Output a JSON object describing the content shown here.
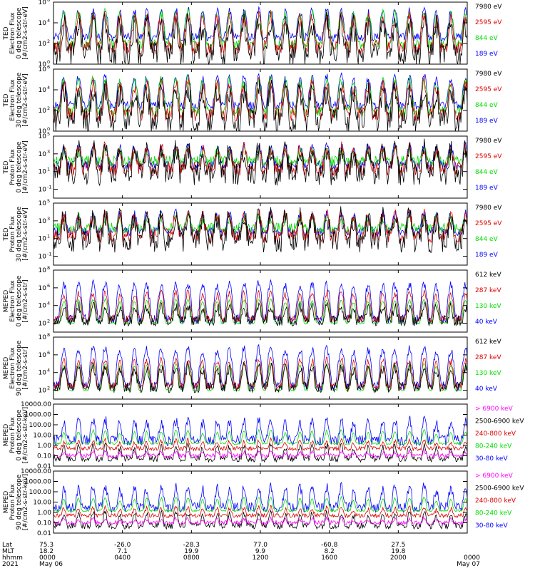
{
  "chart_data": [
    {
      "type": "line",
      "ylabel": [
        "TED",
        "Electron Flux",
        "0 deg telescope",
        "[#/cm2-s-str-eV]"
      ],
      "yscale": "log",
      "ylim": [
        1,
        1000000
      ],
      "yticks": [
        {
          "label": "10",
          "exp": "0",
          "value": 1
        },
        {
          "label": "10",
          "exp": "2",
          "value": 100
        },
        {
          "label": "10",
          "exp": "4",
          "value": 10000
        },
        {
          "label": "10",
          "exp": "6",
          "value": 1000000
        }
      ],
      "series": [
        {
          "name": "7980 eV",
          "color": "#000000",
          "base": 10,
          "peak": 10000,
          "noise": 1.2
        },
        {
          "name": "2595 eV",
          "color": "#dd0000",
          "base": 40,
          "peak": 40000,
          "noise": 0.7
        },
        {
          "name": "844 eV",
          "color": "#00dd00",
          "base": 80,
          "peak": 100000,
          "noise": 0.5
        },
        {
          "name": "189 eV",
          "color": "#0000ff",
          "base": 400,
          "peak": 200000,
          "noise": 0.4
        }
      ]
    },
    {
      "type": "line",
      "ylabel": [
        "TED",
        "Electron Flux",
        "30 deg telescope",
        "[#/cm2-s-str-eV]"
      ],
      "yscale": "log",
      "ylim": [
        1,
        1000000
      ],
      "yticks": [
        {
          "label": "10",
          "exp": "0",
          "value": 1
        },
        {
          "label": "10",
          "exp": "2",
          "value": 100
        },
        {
          "label": "10",
          "exp": "4",
          "value": 10000
        },
        {
          "label": "10",
          "exp": "6",
          "value": 1000000
        }
      ],
      "series": [
        {
          "name": "7980 eV",
          "color": "#000000",
          "base": 10,
          "peak": 10000,
          "noise": 1.2
        },
        {
          "name": "2595 eV",
          "color": "#dd0000",
          "base": 40,
          "peak": 40000,
          "noise": 0.7
        },
        {
          "name": "844 eV",
          "color": "#00dd00",
          "base": 80,
          "peak": 100000,
          "noise": 0.5
        },
        {
          "name": "189 eV",
          "color": "#0000ff",
          "base": 300,
          "peak": 200000,
          "noise": 0.4
        }
      ]
    },
    {
      "type": "line",
      "ylabel": [
        "TED",
        "Proton Flux",
        "0 deg telescope",
        "[#/cm2-s-str-eV]"
      ],
      "yscale": "log",
      "ylim": [
        0.01,
        100000
      ],
      "yticks": [
        {
          "label": "10",
          "exp": "-1",
          "value": 0.1
        },
        {
          "label": "10",
          "exp": "1",
          "value": 10
        },
        {
          "label": "10",
          "exp": "3",
          "value": 1000
        },
        {
          "label": "10",
          "exp": "5",
          "value": 100000
        }
      ],
      "series": [
        {
          "name": "7980 eV",
          "color": "#000000",
          "base": 5,
          "peak": 3000,
          "noise": 1.3
        },
        {
          "name": "2595 eV",
          "color": "#dd0000",
          "base": 20,
          "peak": 5000,
          "noise": 0.8
        },
        {
          "name": "844 eV",
          "color": "#00dd00",
          "base": 150,
          "peak": 3000,
          "noise": 0.6
        },
        {
          "name": "189 eV",
          "color": "#0000ff",
          "base": 60,
          "peak": 10000,
          "noise": 0.5
        }
      ]
    },
    {
      "type": "line",
      "ylabel": [
        "TED",
        "Proton Flux",
        "30 deg telescope",
        "[#/cm2-s-str-eV]"
      ],
      "yscale": "log",
      "ylim": [
        0.01,
        100000
      ],
      "yticks": [
        {
          "label": "10",
          "exp": "-1",
          "value": 0.1
        },
        {
          "label": "10",
          "exp": "1",
          "value": 10
        },
        {
          "label": "10",
          "exp": "3",
          "value": 1000
        },
        {
          "label": "10",
          "exp": "5",
          "value": 100000
        }
      ],
      "series": [
        {
          "name": "7980 eV",
          "color": "#000000",
          "base": 5,
          "peak": 3000,
          "noise": 1.3
        },
        {
          "name": "2595 eV",
          "color": "#dd0000",
          "base": 20,
          "peak": 5000,
          "noise": 0.8
        },
        {
          "name": "844 eV",
          "color": "#00dd00",
          "base": 150,
          "peak": 3000,
          "noise": 0.6
        },
        {
          "name": "189 eV",
          "color": "#0000ff",
          "base": 60,
          "peak": 10000,
          "noise": 0.5
        }
      ]
    },
    {
      "type": "line",
      "ylabel": [
        "MEPED",
        "Electron Flux",
        "0 deg telescope",
        "[#/cm2-s-str]"
      ],
      "yscale": "log",
      "ylim": [
        10,
        100000000
      ],
      "yticks": [
        {
          "label": "10",
          "exp": "2",
          "value": 100
        },
        {
          "label": "10",
          "exp": "4",
          "value": 10000
        },
        {
          "label": "10",
          "exp": "6",
          "value": 1000000
        },
        {
          "label": "10",
          "exp": "8",
          "value": 100000000
        }
      ],
      "series": [
        {
          "name": "612 keV",
          "color": "#000000",
          "base": 200,
          "peak": 10000,
          "noise": 0.6
        },
        {
          "name": "287 keV",
          "color": "#dd0000",
          "base": 300,
          "peak": 300000,
          "noise": 0.4
        },
        {
          "name": "130 keV",
          "color": "#00dd00",
          "base": 100,
          "peak": 50000,
          "noise": 0.1
        },
        {
          "name": "40 keV",
          "color": "#0000ff",
          "base": 300,
          "peak": 3000000,
          "noise": 0.5
        }
      ]
    },
    {
      "type": "line",
      "ylabel": [
        "MEPED",
        "Electron Flux",
        "90 deg telescope",
        "[#/cm2-s-str]"
      ],
      "yscale": "log",
      "ylim": [
        10,
        100000000
      ],
      "yticks": [
        {
          "label": "10",
          "exp": "2",
          "value": 100
        },
        {
          "label": "10",
          "exp": "4",
          "value": 10000
        },
        {
          "label": "10",
          "exp": "6",
          "value": 1000000
        },
        {
          "label": "10",
          "exp": "8",
          "value": 100000000
        }
      ],
      "series": [
        {
          "name": "612 keV",
          "color": "#000000",
          "base": 200,
          "peak": 50000,
          "noise": 0.6
        },
        {
          "name": "287 keV",
          "color": "#dd0000",
          "base": 300,
          "peak": 300000,
          "noise": 0.4
        },
        {
          "name": "130 keV",
          "color": "#00dd00",
          "base": 100,
          "peak": 100000,
          "noise": 0.1
        },
        {
          "name": "40 keV",
          "color": "#0000ff",
          "base": 300,
          "peak": 5000000,
          "noise": 0.5
        }
      ]
    },
    {
      "type": "line",
      "ylabel": [
        "MEPED",
        "Proton Flux",
        "0 deg telescope",
        "[#/cm2-s-str-keV]"
      ],
      "yscale": "log",
      "ylim": [
        0.01,
        10000
      ],
      "yticks": [
        {
          "label": "0.01",
          "exp": "",
          "value": 0.01
        },
        {
          "label": "0.10",
          "exp": "",
          "value": 0.1
        },
        {
          "label": "1.00",
          "exp": "",
          "value": 1
        },
        {
          "label": "10.00",
          "exp": "",
          "value": 10
        },
        {
          "label": "100.00",
          "exp": "",
          "value": 100
        },
        {
          "label": "1000.00",
          "exp": "",
          "value": 1000
        },
        {
          "label": "10000.00",
          "exp": "",
          "value": 10000
        }
      ],
      "series": [
        {
          "name": "> 6900 keV",
          "color": "#ff00ff",
          "base": 0.1,
          "peak": 0.2,
          "noise": 0.2
        },
        {
          "name": "2500-6900 keV",
          "color": "#000000",
          "base": 0.05,
          "peak": 1,
          "noise": 0.3
        },
        {
          "name": "240-800 keV",
          "color": "#dd0000",
          "base": 0.5,
          "peak": 3,
          "noise": 0.2
        },
        {
          "name": "80-240 keV",
          "color": "#00dd00",
          "base": 1.5,
          "peak": 30,
          "noise": 0.1
        },
        {
          "name": "30-80 keV",
          "color": "#0000ff",
          "base": 3,
          "peak": 300,
          "noise": 0.5
        }
      ]
    },
    {
      "type": "line",
      "ylabel": [
        "MEPED",
        "Proton Flux",
        "90 deg telescope",
        "[#/cm2-s-str-keV]"
      ],
      "yscale": "log",
      "ylim": [
        0.01,
        10000
      ],
      "yticks": [
        {
          "label": "0.01",
          "exp": "",
          "value": 0.01
        },
        {
          "label": "0.10",
          "exp": "",
          "value": 0.1
        },
        {
          "label": "1.00",
          "exp": "",
          "value": 1
        },
        {
          "label": "10.00",
          "exp": "",
          "value": 10
        },
        {
          "label": "100.00",
          "exp": "",
          "value": 100
        },
        {
          "label": "1000.00",
          "exp": "",
          "value": 1000
        },
        {
          "label": "10000.00",
          "exp": "",
          "value": 10000
        }
      ],
      "series": [
        {
          "name": "> 6900 keV",
          "color": "#ff00ff",
          "base": 0.1,
          "peak": 0.2,
          "noise": 0.2
        },
        {
          "name": "2500-6900 keV",
          "color": "#000000",
          "base": 0.05,
          "peak": 1,
          "noise": 0.3
        },
        {
          "name": "240-800 keV",
          "color": "#dd0000",
          "base": 0.5,
          "peak": 3,
          "noise": 0.2
        },
        {
          "name": "80-240 keV",
          "color": "#00dd00",
          "base": 1.5,
          "peak": 30,
          "noise": 0.1
        },
        {
          "name": "30-80 keV",
          "color": "#0000ff",
          "base": 3,
          "peak": 300,
          "noise": 0.5
        }
      ]
    }
  ],
  "x_axis": {
    "row_labels": [
      "Lat",
      "MLT",
      "hhmm",
      "2021"
    ],
    "hours": [
      0,
      4,
      8,
      12,
      16,
      20,
      24
    ],
    "ticks": [
      {
        "lat": "75.3",
        "mlt": "18.2",
        "hhmm": "0000",
        "date": "May 06"
      },
      {
        "lat": "-26.0",
        "mlt": "7.1",
        "hhmm": "0400",
        "date": ""
      },
      {
        "lat": "-28.3",
        "mlt": "19.9",
        "hhmm": "0800",
        "date": ""
      },
      {
        "lat": "77.0",
        "mlt": "9.9",
        "hhmm": "1200",
        "date": ""
      },
      {
        "lat": "-60.8",
        "mlt": "8.2",
        "hhmm": "1600",
        "date": ""
      },
      {
        "lat": "27.5",
        "mlt": "19.8",
        "hhmm": "2000",
        "date": ""
      },
      {
        "lat": "",
        "mlt": "",
        "hhmm": "0000",
        "date": "May 07"
      }
    ]
  }
}
